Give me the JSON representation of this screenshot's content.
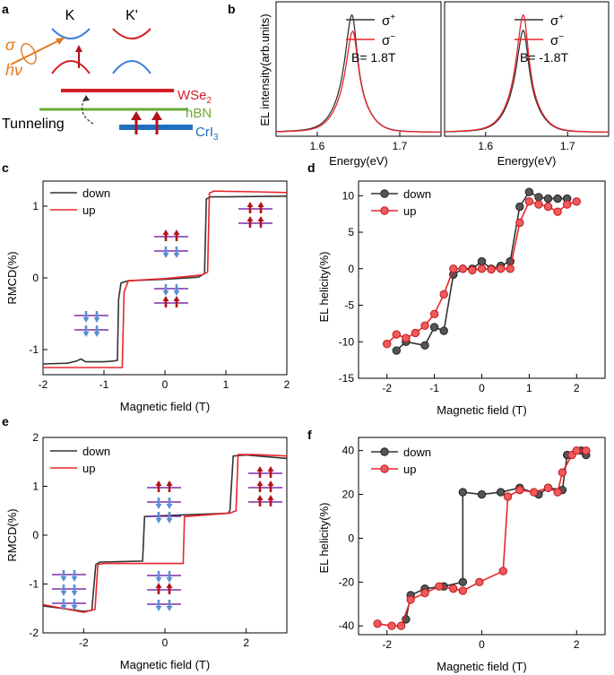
{
  "colors": {
    "black": "#333333",
    "red": "#e8262b",
    "blue": "#3d7fd9",
    "wse2": "#d41f26",
    "hbn": "#6aaa3a",
    "cri3": "#1f6fc0",
    "orange": "#e07b20",
    "purple": "#7b2fa8",
    "arrow_red": "#b3121b",
    "arrow_blue": "#5b8fd6",
    "marker_gray": "#555555",
    "marker_red": "#f05a5a"
  },
  "panel_a": {
    "label": "a",
    "valley_k": "K",
    "valley_kprime": "K'",
    "sigma": "σ",
    "hnu": "hν",
    "layer_wse2": "WSe",
    "layer_wse2_sub": "2",
    "layer_hbn": "hBN",
    "layer_cri3": "CrI",
    "layer_cri3_sub": "3",
    "tunneling": "Tunneling"
  },
  "chart_data": [
    {
      "id": "b",
      "type": "line",
      "label": "b",
      "ylabel": "EL intensity(arb.units)",
      "subplots": [
        {
          "xlabel": "Energy(eV)",
          "xlim": [
            1.55,
            1.75
          ],
          "xticks": [
            1.6,
            1.7
          ],
          "xtick_labels": [
            "1.6",
            "1.7"
          ],
          "annotation": "B= 1.8T",
          "series": [
            {
              "name": "σ+",
              "name_base": "σ",
              "name_sup": "+",
              "color": "black",
              "center": 1.642,
              "amplitude": 1.0
            },
            {
              "name": "σ−",
              "name_base": "σ",
              "name_sup": "−",
              "color": "red",
              "center": 1.643,
              "amplitude": 0.83
            }
          ]
        },
        {
          "xlabel": "Energy(eV)",
          "xlim": [
            1.55,
            1.75
          ],
          "xticks": [
            1.6,
            1.7
          ],
          "xtick_labels": [
            "1.6",
            "1.7"
          ],
          "annotation": "B= -1.8T",
          "series": [
            {
              "name": "σ+",
              "name_base": "σ",
              "name_sup": "+",
              "color": "black",
              "center": 1.646,
              "amplitude": 0.84
            },
            {
              "name": "σ−",
              "name_base": "σ",
              "name_sup": "−",
              "color": "red",
              "center": 1.646,
              "amplitude": 1.0
            }
          ]
        }
      ]
    },
    {
      "id": "c",
      "type": "line",
      "label": "c",
      "xlabel": "Magnetic field (T)",
      "ylabel": "RMCD(%)",
      "xlim": [
        -2,
        2
      ],
      "ylim": [
        -1.35,
        1.35
      ],
      "xticks": [
        -2,
        -1,
        0,
        1,
        2
      ],
      "xtick_labels": [
        "-2",
        "-1",
        "0",
        "1",
        "2"
      ],
      "yticks": [
        -1,
        0,
        1
      ],
      "ytick_labels": [
        "-1",
        "0",
        "1"
      ],
      "series": [
        {
          "name": "down",
          "color": "black",
          "points": [
            [
              -2.0,
              -1.2
            ],
            [
              -1.6,
              -1.19
            ],
            [
              -1.45,
              -1.16
            ],
            [
              -1.38,
              -1.13
            ],
            [
              -1.3,
              -1.17
            ],
            [
              -1.0,
              -1.17
            ],
            [
              -0.85,
              -1.16
            ],
            [
              -0.78,
              -1.15
            ],
            [
              -0.76,
              -0.3
            ],
            [
              -0.72,
              -0.07
            ],
            [
              -0.6,
              -0.04
            ],
            [
              0.0,
              -0.02
            ],
            [
              0.55,
              0.01
            ],
            [
              0.65,
              0.06
            ],
            [
              0.68,
              1.1
            ],
            [
              0.75,
              1.13
            ],
            [
              1.0,
              1.13
            ],
            [
              2.0,
              1.14
            ]
          ]
        },
        {
          "name": "up",
          "color": "red",
          "points": [
            [
              -2.0,
              -1.25
            ],
            [
              -0.7,
              -1.25
            ],
            [
              -0.67,
              -0.2
            ],
            [
              -0.6,
              -0.04
            ],
            [
              0.0,
              -0.01
            ],
            [
              0.6,
              0.04
            ],
            [
              0.7,
              0.08
            ],
            [
              0.73,
              1.18
            ],
            [
              0.8,
              1.21
            ],
            [
              1.5,
              1.2
            ],
            [
              2.0,
              1.19
            ]
          ]
        }
      ]
    },
    {
      "id": "d",
      "type": "line",
      "label": "d",
      "xlabel": "Magnetic field (T)",
      "ylabel": "EL helicity(%)",
      "xlim": [
        -2.6,
        2.6
      ],
      "ylim": [
        -15,
        12
      ],
      "xticks": [
        -2,
        -1,
        0,
        1,
        2
      ],
      "xtick_labels": [
        "-2",
        "-1",
        "0",
        "1",
        "2"
      ],
      "yticks": [
        -15,
        -10,
        -5,
        0,
        5,
        10
      ],
      "ytick_labels": [
        "-15",
        "-10",
        "-5",
        "0",
        "5",
        "10"
      ],
      "series": [
        {
          "name": "down",
          "color": "black",
          "points": [
            [
              -1.8,
              -11.2
            ],
            [
              -1.6,
              -10.0
            ],
            [
              -1.2,
              -10.5
            ],
            [
              -1.0,
              -8.0
            ],
            [
              -0.8,
              -8.5
            ],
            [
              -0.6,
              -0.8
            ],
            [
              -0.4,
              0.0
            ],
            [
              -0.2,
              0.0
            ],
            [
              0.0,
              1.0
            ],
            [
              0.2,
              0.0
            ],
            [
              0.4,
              0.4
            ],
            [
              0.6,
              1.0
            ],
            [
              0.8,
              8.5
            ],
            [
              1.0,
              10.5
            ],
            [
              1.2,
              9.8
            ],
            [
              1.4,
              9.6
            ],
            [
              1.6,
              9.6
            ],
            [
              1.8,
              9.6
            ]
          ]
        },
        {
          "name": "up",
          "color": "red",
          "points": [
            [
              -2.0,
              -10.3
            ],
            [
              -1.8,
              -9.0
            ],
            [
              -1.6,
              -9.5
            ],
            [
              -1.4,
              -8.8
            ],
            [
              -1.2,
              -7.8
            ],
            [
              -1.0,
              -6.2
            ],
            [
              -0.8,
              -3.5
            ],
            [
              -0.6,
              0.0
            ],
            [
              -0.4,
              0.0
            ],
            [
              -0.2,
              -0.2
            ],
            [
              0.0,
              0.0
            ],
            [
              0.2,
              -0.1
            ],
            [
              0.4,
              0.0
            ],
            [
              0.6,
              0.0
            ],
            [
              0.8,
              6.3
            ],
            [
              1.0,
              9.2
            ],
            [
              1.2,
              8.8
            ],
            [
              1.4,
              8.5
            ],
            [
              1.6,
              7.8
            ],
            [
              1.8,
              8.8
            ],
            [
              2.0,
              9.2
            ]
          ]
        }
      ]
    },
    {
      "id": "e",
      "type": "line",
      "label": "e",
      "xlabel": "Magnetic field (T)",
      "ylabel": "RMCD(%)",
      "xlim": [
        -3,
        3
      ],
      "ylim": [
        -2,
        2
      ],
      "xticks": [
        -2,
        0,
        2
      ],
      "xtick_labels": [
        "-2",
        "0",
        "2"
      ],
      "yticks": [
        -2,
        -1,
        0,
        1,
        2
      ],
      "ytick_labels": [
        "-2",
        "-1",
        "0",
        "1",
        "2"
      ],
      "series": [
        {
          "name": "down",
          "color": "black",
          "points": [
            [
              -3.0,
              -1.45
            ],
            [
              -2.5,
              -1.5
            ],
            [
              -2.0,
              -1.56
            ],
            [
              -1.8,
              -1.54
            ],
            [
              -1.7,
              -0.6
            ],
            [
              -1.6,
              -0.55
            ],
            [
              -0.55,
              -0.53
            ],
            [
              -0.5,
              0.38
            ],
            [
              0.0,
              0.4
            ],
            [
              1.55,
              0.45
            ],
            [
              1.6,
              0.5
            ],
            [
              1.68,
              1.62
            ],
            [
              2.0,
              1.64
            ],
            [
              3.0,
              1.57
            ]
          ]
        },
        {
          "name": "up",
          "color": "red",
          "points": [
            [
              -3.0,
              -1.42
            ],
            [
              -2.0,
              -1.58
            ],
            [
              -1.72,
              -1.52
            ],
            [
              -1.65,
              -0.6
            ],
            [
              -1.5,
              -0.58
            ],
            [
              0.45,
              -0.58
            ],
            [
              0.48,
              0.38
            ],
            [
              1.6,
              0.45
            ],
            [
              1.75,
              0.5
            ],
            [
              1.8,
              1.65
            ],
            [
              2.2,
              1.65
            ],
            [
              3.0,
              1.62
            ]
          ]
        }
      ]
    },
    {
      "id": "f",
      "type": "line",
      "label": "f",
      "xlabel": "Magnetic field (T)",
      "ylabel": "EL helicity(%)",
      "xlim": [
        -2.6,
        2.6
      ],
      "ylim": [
        -44,
        46
      ],
      "xticks": [
        -2,
        0,
        2
      ],
      "xtick_labels": [
        "-2",
        "0",
        "2"
      ],
      "yticks": [
        -40,
        -20,
        0,
        20,
        40
      ],
      "ytick_labels": [
        "-40",
        "-20",
        "0",
        "20",
        "40"
      ],
      "series": [
        {
          "name": "down",
          "color": "black",
          "points": [
            [
              -1.6,
              -37.0
            ],
            [
              -1.5,
              -26.0
            ],
            [
              -1.2,
              -23.0
            ],
            [
              -0.8,
              -22.0
            ],
            [
              -0.4,
              -20.0
            ],
            [
              -0.4,
              21.0
            ],
            [
              0.0,
              20.0
            ],
            [
              0.4,
              21.0
            ],
            [
              0.8,
              23.0
            ],
            [
              1.2,
              20.0
            ],
            [
              1.4,
              23.0
            ],
            [
              1.7,
              22.0
            ],
            [
              1.8,
              38.0
            ],
            [
              2.1,
              40.0
            ],
            [
              2.2,
              38.0
            ]
          ]
        },
        {
          "name": "up",
          "color": "red",
          "points": [
            [
              -2.2,
              -39.0
            ],
            [
              -1.9,
              -40.0
            ],
            [
              -1.7,
              -40.0
            ],
            [
              -1.5,
              -28.0
            ],
            [
              -1.2,
              -25.0
            ],
            [
              -0.9,
              -22.0
            ],
            [
              -0.6,
              -23.0
            ],
            [
              -0.4,
              -24.0
            ],
            [
              -0.05,
              -20.0
            ],
            [
              0.45,
              -15.0
            ],
            [
              0.55,
              19.0
            ],
            [
              0.8,
              22.0
            ],
            [
              1.1,
              21.0
            ],
            [
              1.4,
              23.0
            ],
            [
              1.6,
              21.0
            ],
            [
              1.7,
              30.0
            ],
            [
              1.9,
              38.0
            ],
            [
              2.0,
              40.0
            ],
            [
              2.2,
              40.0
            ]
          ]
        }
      ]
    }
  ]
}
